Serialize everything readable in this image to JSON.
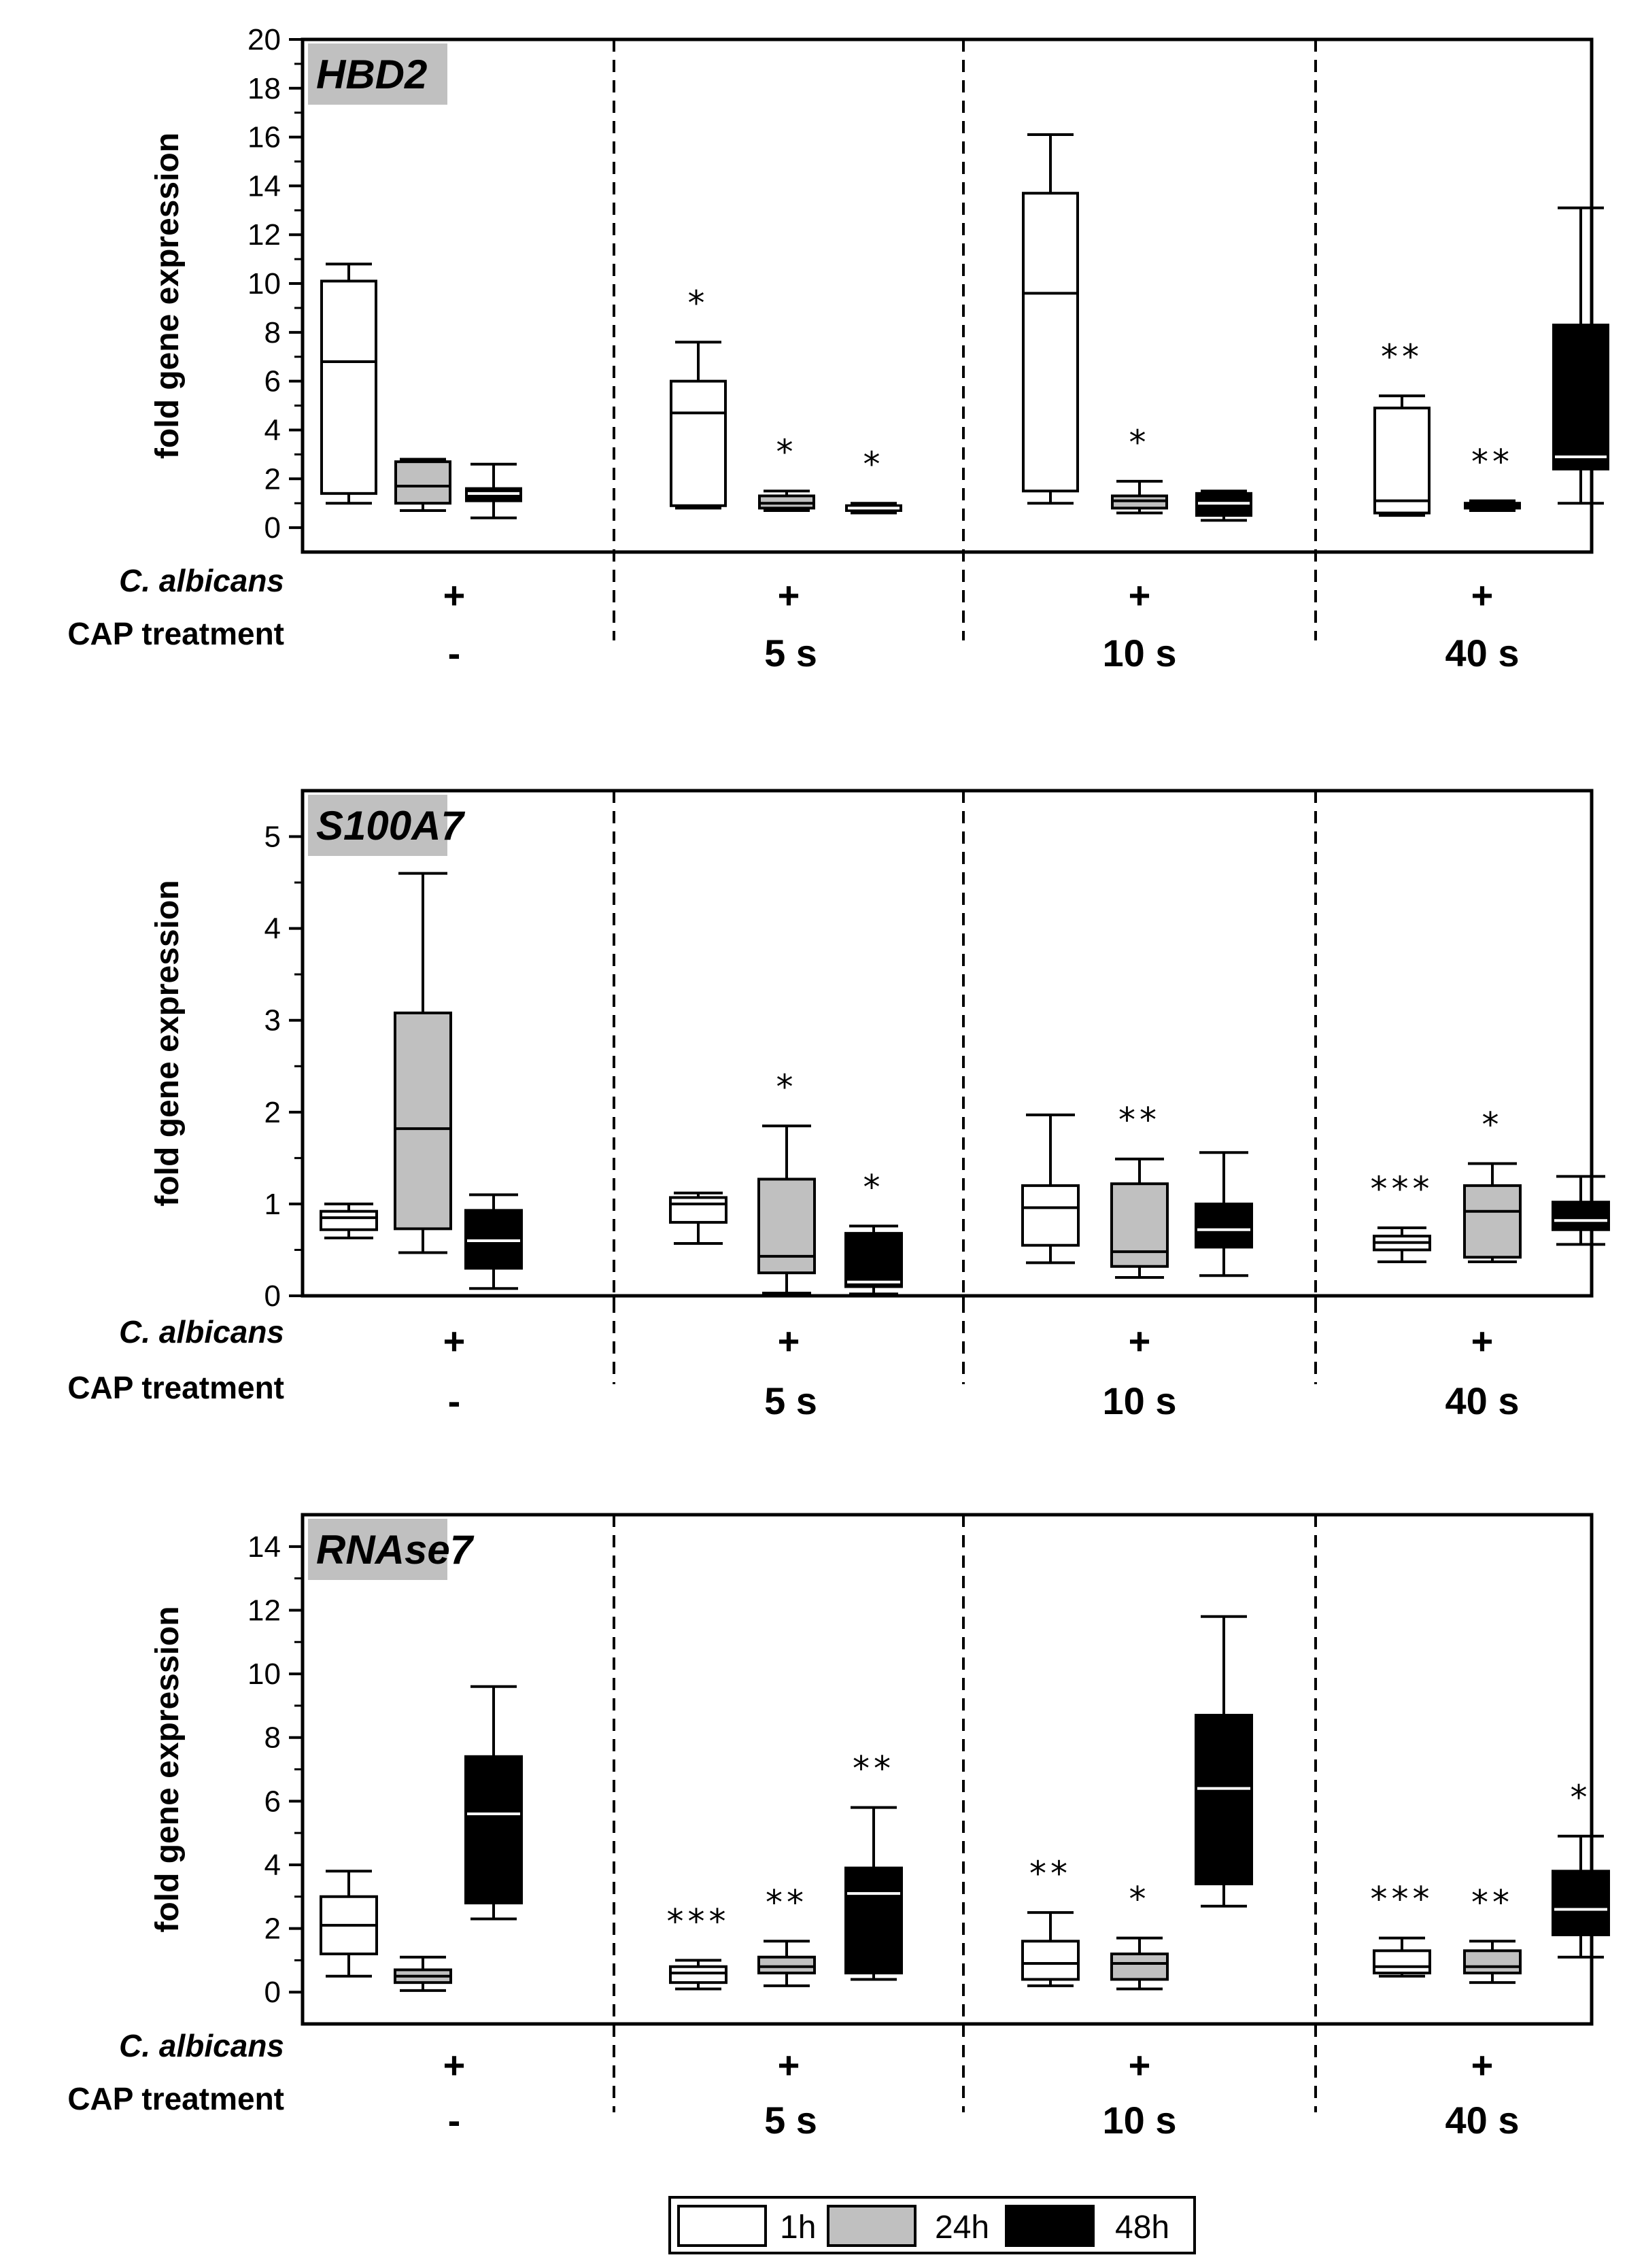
{
  "legend": [
    {
      "label": "1h",
      "color": "#ffffff"
    },
    {
      "label": "24h",
      "color": "#c0c0c0"
    },
    {
      "label": "48h",
      "color": "#000000"
    }
  ],
  "row_labels": {
    "organism": "C. albicans",
    "treatment": "CAP treatment"
  },
  "chart_data": [
    {
      "type": "boxplot",
      "title": "HBD2",
      "ylabel": "fold gene expression",
      "ylim": [
        -1,
        20
      ],
      "yticks": [
        0,
        2,
        4,
        6,
        8,
        10,
        12,
        14,
        16,
        18,
        20
      ],
      "groups": [
        {
          "organism": "+",
          "treatment": "-",
          "boxes": [
            {
              "series": "1h",
              "min": 1.0,
              "q1": 1.4,
              "median": 6.8,
              "q3": 10.1,
              "max": 10.8,
              "annotation": ""
            },
            {
              "series": "24h",
              "min": 0.7,
              "q1": 1.0,
              "median": 1.7,
              "q3": 2.7,
              "max": 2.8,
              "annotation": ""
            },
            {
              "series": "48h",
              "min": 0.4,
              "q1": 1.1,
              "median": 1.4,
              "q3": 1.6,
              "max": 2.6,
              "annotation": ""
            }
          ]
        },
        {
          "organism": "+",
          "treatment": "5 s",
          "boxes": [
            {
              "series": "1h",
              "min": 0.8,
              "q1": 0.9,
              "median": 4.7,
              "q3": 6.0,
              "max": 7.6,
              "annotation": "*"
            },
            {
              "series": "24h",
              "min": 0.7,
              "q1": 0.8,
              "median": 1.0,
              "q3": 1.3,
              "max": 1.5,
              "annotation": "*"
            },
            {
              "series": "48h",
              "min": 0.6,
              "q1": 0.7,
              "median": 0.8,
              "q3": 0.9,
              "max": 1.0,
              "annotation": "*"
            }
          ]
        },
        {
          "organism": "+",
          "treatment": "10 s",
          "boxes": [
            {
              "series": "1h",
              "min": 1.0,
              "q1": 1.5,
              "median": 9.6,
              "q3": 13.7,
              "max": 16.1,
              "annotation": ""
            },
            {
              "series": "24h",
              "min": 0.6,
              "q1": 0.8,
              "median": 1.1,
              "q3": 1.3,
              "max": 1.9,
              "annotation": "*"
            },
            {
              "series": "48h",
              "min": 0.3,
              "q1": 0.5,
              "median": 1.0,
              "q3": 1.4,
              "max": 1.5,
              "annotation": ""
            }
          ]
        },
        {
          "organism": "+",
          "treatment": "40 s",
          "boxes": [
            {
              "series": "1h",
              "min": 0.5,
              "q1": 0.6,
              "median": 1.1,
              "q3": 4.9,
              "max": 5.4,
              "annotation": "**"
            },
            {
              "series": "24h",
              "min": 0.7,
              "q1": 0.8,
              "median": 0.9,
              "q3": 1.0,
              "max": 1.1,
              "annotation": "**"
            },
            {
              "series": "48h",
              "min": 1.0,
              "q1": 2.4,
              "median": 2.9,
              "q3": 8.3,
              "max": 13.1,
              "annotation": ""
            }
          ]
        }
      ]
    },
    {
      "type": "boxplot",
      "title": "S100A7",
      "ylabel": "fold gene expression",
      "ylim": [
        0,
        5.5
      ],
      "yticks": [
        0,
        1,
        2,
        3,
        4,
        5
      ],
      "groups": [
        {
          "organism": "+",
          "treatment": "-",
          "boxes": [
            {
              "series": "1h",
              "min": 0.63,
              "q1": 0.72,
              "median": 0.85,
              "q3": 0.92,
              "max": 1.0,
              "annotation": ""
            },
            {
              "series": "24h",
              "min": 0.47,
              "q1": 0.73,
              "median": 1.82,
              "q3": 3.08,
              "max": 4.6,
              "annotation": ""
            },
            {
              "series": "48h",
              "min": 0.08,
              "q1": 0.3,
              "median": 0.6,
              "q3": 0.93,
              "max": 1.1,
              "annotation": ""
            }
          ]
        },
        {
          "organism": "+",
          "treatment": "5 s",
          "boxes": [
            {
              "series": "1h",
              "min": 0.57,
              "q1": 0.8,
              "median": 1.0,
              "q3": 1.07,
              "max": 1.12,
              "annotation": ""
            },
            {
              "series": "24h",
              "min": 0.03,
              "q1": 0.25,
              "median": 0.43,
              "q3": 1.27,
              "max": 1.85,
              "annotation": "*"
            },
            {
              "series": "48h",
              "min": 0.02,
              "q1": 0.1,
              "median": 0.15,
              "q3": 0.68,
              "max": 0.76,
              "annotation": "*"
            }
          ]
        },
        {
          "organism": "+",
          "treatment": "10 s",
          "boxes": [
            {
              "series": "1h",
              "min": 0.36,
              "q1": 0.55,
              "median": 0.96,
              "q3": 1.2,
              "max": 1.97,
              "annotation": ""
            },
            {
              "series": "24h",
              "min": 0.2,
              "q1": 0.32,
              "median": 0.48,
              "q3": 1.22,
              "max": 1.49,
              "annotation": "**"
            },
            {
              "series": "48h",
              "min": 0.22,
              "q1": 0.53,
              "median": 0.72,
              "q3": 1.0,
              "max": 1.56,
              "annotation": ""
            }
          ]
        },
        {
          "organism": "+",
          "treatment": "40 s",
          "boxes": [
            {
              "series": "1h",
              "min": 0.37,
              "q1": 0.5,
              "median": 0.58,
              "q3": 0.65,
              "max": 0.74,
              "annotation": "***"
            },
            {
              "series": "24h",
              "min": 0.37,
              "q1": 0.42,
              "median": 0.92,
              "q3": 1.2,
              "max": 1.44,
              "annotation": "*"
            },
            {
              "series": "48h",
              "min": 0.56,
              "q1": 0.72,
              "median": 0.82,
              "q3": 1.02,
              "max": 1.3,
              "annotation": ""
            }
          ]
        }
      ]
    },
    {
      "type": "boxplot",
      "title": "RNAse7",
      "ylabel": "fold gene expression",
      "ylim": [
        -1,
        15
      ],
      "yticks": [
        0,
        2,
        4,
        6,
        8,
        10,
        12,
        14
      ],
      "groups": [
        {
          "organism": "+",
          "treatment": "-",
          "boxes": [
            {
              "series": "1h",
              "min": 0.5,
              "q1": 1.2,
              "median": 2.1,
              "q3": 3.0,
              "max": 3.8,
              "annotation": ""
            },
            {
              "series": "24h",
              "min": 0.05,
              "q1": 0.3,
              "median": 0.5,
              "q3": 0.7,
              "max": 1.1,
              "annotation": ""
            },
            {
              "series": "48h",
              "min": 2.3,
              "q1": 2.8,
              "median": 5.6,
              "q3": 7.4,
              "max": 9.6,
              "annotation": ""
            }
          ]
        },
        {
          "organism": "+",
          "treatment": "5 s",
          "boxes": [
            {
              "series": "1h",
              "min": 0.1,
              "q1": 0.3,
              "median": 0.6,
              "q3": 0.8,
              "max": 1.0,
              "annotation": "***"
            },
            {
              "series": "24h",
              "min": 0.2,
              "q1": 0.6,
              "median": 0.8,
              "q3": 1.1,
              "max": 1.6,
              "annotation": "**"
            },
            {
              "series": "48h",
              "min": 0.4,
              "q1": 0.6,
              "median": 3.1,
              "q3": 3.9,
              "max": 5.8,
              "annotation": "**"
            }
          ]
        },
        {
          "organism": "+",
          "treatment": "10 s",
          "boxes": [
            {
              "series": "1h",
              "min": 0.2,
              "q1": 0.4,
              "median": 0.9,
              "q3": 1.6,
              "max": 2.5,
              "annotation": "**"
            },
            {
              "series": "24h",
              "min": 0.1,
              "q1": 0.4,
              "median": 0.9,
              "q3": 1.2,
              "max": 1.7,
              "annotation": "*"
            },
            {
              "series": "48h",
              "min": 2.7,
              "q1": 3.4,
              "median": 6.4,
              "q3": 8.7,
              "max": 11.8,
              "annotation": ""
            }
          ]
        },
        {
          "organism": "+",
          "treatment": "40 s",
          "boxes": [
            {
              "series": "1h",
              "min": 0.5,
              "q1": 0.6,
              "median": 0.8,
              "q3": 1.3,
              "max": 1.7,
              "annotation": "***"
            },
            {
              "series": "24h",
              "min": 0.3,
              "q1": 0.6,
              "median": 0.8,
              "q3": 1.3,
              "max": 1.6,
              "annotation": "**"
            },
            {
              "series": "48h",
              "min": 1.1,
              "q1": 1.8,
              "median": 2.6,
              "q3": 3.8,
              "max": 4.9,
              "annotation": "*"
            }
          ]
        }
      ]
    }
  ]
}
